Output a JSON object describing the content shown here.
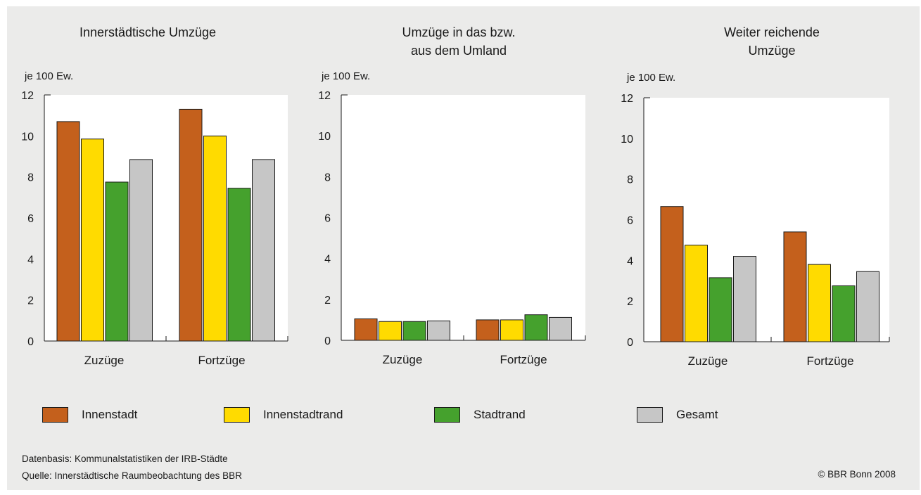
{
  "chart_data": [
    {
      "type": "bar",
      "title": "Innerstädtische Umzüge",
      "ylabel": "je 100 Ew.",
      "categories": [
        "Zuzüge",
        "Fortzüge"
      ],
      "ylim": [
        0,
        12
      ],
      "yticks": [
        "0",
        "2",
        "4",
        "6",
        "8",
        "10",
        "12"
      ],
      "series": [
        {
          "name": "Innenstadt",
          "values": [
            10.7,
            11.3
          ]
        },
        {
          "name": "Innenstadtrand",
          "values": [
            9.85,
            10.0
          ]
        },
        {
          "name": "Stadtrand",
          "values": [
            7.75,
            7.45
          ]
        },
        {
          "name": "Gesamt",
          "values": [
            8.85,
            8.85
          ]
        }
      ]
    },
    {
      "type": "bar",
      "title": "Umzüge in das bzw. aus dem Umland",
      "title_lines": [
        "Umzüge in das bzw.",
        "aus dem Umland"
      ],
      "ylabel": "je 100 Ew.",
      "categories": [
        "Zuzüge",
        "Fortzüge"
      ],
      "ylim": [
        0,
        12
      ],
      "yticks": [
        "0",
        "2",
        "4",
        "6",
        "8",
        "10",
        "12"
      ],
      "series": [
        {
          "name": "Innenstadt",
          "values": [
            1.05,
            1.0
          ]
        },
        {
          "name": "Innenstadtrand",
          "values": [
            0.92,
            1.0
          ]
        },
        {
          "name": "Stadtrand",
          "values": [
            0.92,
            1.25
          ]
        },
        {
          "name": "Gesamt",
          "values": [
            0.95,
            1.12
          ]
        }
      ]
    },
    {
      "type": "bar",
      "title": "Weiter reichende Umzüge",
      "title_lines": [
        "Weiter reichende",
        "Umzüge"
      ],
      "ylabel": "je 100 Ew.",
      "categories": [
        "Zuzüge",
        "Fortzüge"
      ],
      "ylim": [
        0,
        12
      ],
      "yticks": [
        "0",
        "2",
        "4",
        "6",
        "8",
        "10",
        "12"
      ],
      "series": [
        {
          "name": "Innenstadt",
          "values": [
            6.65,
            5.4
          ]
        },
        {
          "name": "Innenstadtrand",
          "values": [
            4.75,
            3.8
          ]
        },
        {
          "name": "Stadtrand",
          "values": [
            3.15,
            2.75
          ]
        },
        {
          "name": "Gesamt",
          "values": [
            4.2,
            3.45
          ]
        }
      ]
    }
  ],
  "legend": [
    {
      "label": "Innenstadt",
      "color": "#c4601c"
    },
    {
      "label": "Innenstadtrand",
      "color": "#ffdb00"
    },
    {
      "label": "Stadtrand",
      "color": "#45a12d"
    },
    {
      "label": "Gesamt",
      "color": "#c6c6c6"
    }
  ],
  "footer": {
    "datenbasis": "Datenbasis: Kommunalstatistiken der IRB-Städte",
    "quelle": "Quelle: Innerstädtische Raumbeobachtung des BBR",
    "copyright": "© BBR Bonn 2008"
  }
}
